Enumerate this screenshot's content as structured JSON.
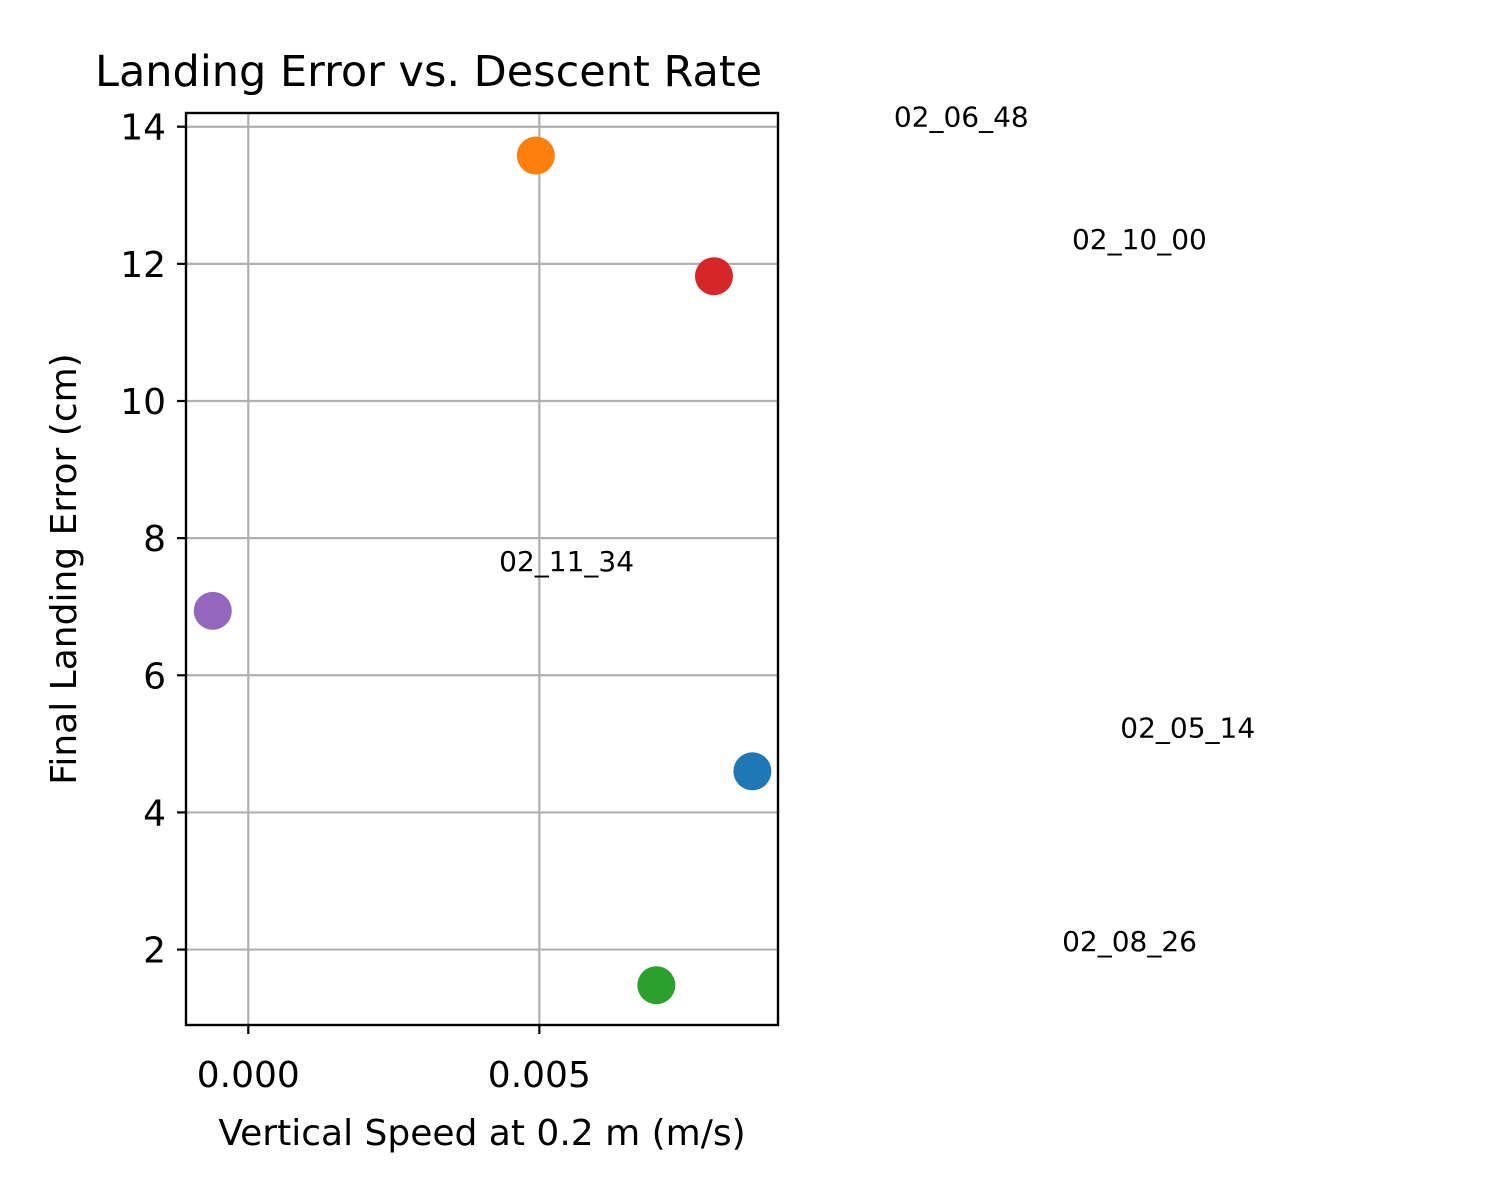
{
  "chart_data": {
    "type": "scatter",
    "title": "Landing Error vs. Descent Rate",
    "xlabel": "Vertical Speed at 0.2 m (m/s)",
    "ylabel": "Final Landing Error (cm)",
    "xlim": [
      -0.00107,
      0.0091
    ],
    "ylim": [
      0.9,
      14.2
    ],
    "xticks": [
      0.0,
      0.005
    ],
    "xtick_labels": [
      "0.000",
      "0.005"
    ],
    "yticks": [
      2,
      4,
      6,
      8,
      10,
      12,
      14
    ],
    "ytick_labels": [
      "2",
      "4",
      "6",
      "8",
      "10",
      "12",
      "14"
    ],
    "grid": true,
    "points": [
      {
        "x": 0.00866,
        "y": 4.6,
        "color": "#1f77b4"
      },
      {
        "x": 0.00494,
        "y": 13.58,
        "color": "#ff7f0e"
      },
      {
        "x": 0.00701,
        "y": 1.48,
        "color": "#2ca02c"
      },
      {
        "x": 0.008,
        "y": 11.82,
        "color": "#d62728"
      },
      {
        "x": -0.00061,
        "y": 6.94,
        "color": "#9467bd"
      }
    ],
    "annotations": [
      {
        "text": "02_05_14",
        "x": 0.01498,
        "y": 5.09
      },
      {
        "text": "02_06_48",
        "x": 0.01109,
        "y": 14.0
      },
      {
        "text": "02_08_26",
        "x": 0.01398,
        "y": 1.98
      },
      {
        "text": "02_10_00",
        "x": 0.01415,
        "y": 12.22
      },
      {
        "text": "02_11_34",
        "x": 0.00431,
        "y": 7.52
      }
    ]
  }
}
